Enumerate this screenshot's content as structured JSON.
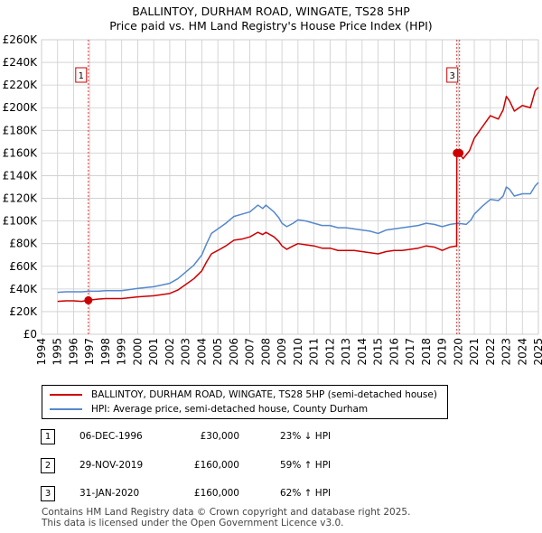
{
  "title_line1": "BALLINTOY, DURHAM ROAD, WINGATE, TS28 5HP",
  "title_line2": "Price paid vs. HM Land Registry's House Price Index (HPI)",
  "chart_data": {
    "type": "line",
    "xlim": [
      1994,
      2025
    ],
    "ylim": [
      0,
      260000
    ],
    "x_ticks": [
      1994,
      1995,
      1996,
      1997,
      1998,
      1999,
      2000,
      2001,
      2002,
      2003,
      2004,
      2005,
      2006,
      2007,
      2008,
      2009,
      2010,
      2011,
      2012,
      2013,
      2014,
      2015,
      2016,
      2017,
      2018,
      2019,
      2020,
      2021,
      2022,
      2023,
      2024,
      2025
    ],
    "y_ticks": [
      {
        "value": 0,
        "label": "£0"
      },
      {
        "value": 20000,
        "label": "£20K"
      },
      {
        "value": 40000,
        "label": "£40K"
      },
      {
        "value": 60000,
        "label": "£60K"
      },
      {
        "value": 80000,
        "label": "£80K"
      },
      {
        "value": 100000,
        "label": "£100K"
      },
      {
        "value": 120000,
        "label": "£120K"
      },
      {
        "value": 140000,
        "label": "£140K"
      },
      {
        "value": 160000,
        "label": "£160K"
      },
      {
        "value": 180000,
        "label": "£180K"
      },
      {
        "value": 200000,
        "label": "£200K"
      },
      {
        "value": 220000,
        "label": "£220K"
      },
      {
        "value": 240000,
        "label": "£240K"
      },
      {
        "value": 260000,
        "label": "£260K"
      }
    ],
    "grid": true,
    "series": [
      {
        "name": "BALLINTOY, DURHAM ROAD, WINGATE, TS28 5HP (semi-detached house)",
        "color": "#cc0000",
        "points": [
          [
            1995.0,
            29000
          ],
          [
            1995.5,
            29500
          ],
          [
            1996.0,
            29500
          ],
          [
            1996.5,
            29000
          ],
          [
            1996.92,
            30000
          ],
          [
            1997.5,
            31000
          ],
          [
            1998.0,
            31500
          ],
          [
            1999.0,
            31500
          ],
          [
            2000.0,
            33000
          ],
          [
            2001.0,
            34000
          ],
          [
            2002.0,
            36000
          ],
          [
            2002.5,
            39000
          ],
          [
            2003.0,
            44000
          ],
          [
            2003.5,
            49000
          ],
          [
            2004.0,
            56000
          ],
          [
            2004.3,
            64000
          ],
          [
            2004.6,
            71000
          ],
          [
            2005.0,
            74000
          ],
          [
            2005.5,
            78000
          ],
          [
            2006.0,
            83000
          ],
          [
            2006.5,
            84000
          ],
          [
            2007.0,
            86000
          ],
          [
            2007.5,
            90000
          ],
          [
            2007.8,
            88000
          ],
          [
            2008.0,
            90000
          ],
          [
            2008.5,
            86000
          ],
          [
            2008.8,
            82000
          ],
          [
            2009.0,
            78000
          ],
          [
            2009.3,
            75000
          ],
          [
            2009.7,
            78000
          ],
          [
            2010.0,
            80000
          ],
          [
            2010.5,
            79000
          ],
          [
            2011.0,
            78000
          ],
          [
            2011.5,
            76000
          ],
          [
            2012.0,
            76000
          ],
          [
            2012.5,
            74000
          ],
          [
            2013.0,
            74000
          ],
          [
            2013.5,
            74000
          ],
          [
            2014.0,
            73000
          ],
          [
            2014.5,
            72000
          ],
          [
            2015.0,
            71000
          ],
          [
            2015.5,
            73000
          ],
          [
            2016.0,
            74000
          ],
          [
            2016.5,
            74000
          ],
          [
            2017.0,
            75000
          ],
          [
            2017.5,
            76000
          ],
          [
            2018.0,
            78000
          ],
          [
            2018.5,
            77000
          ],
          [
            2019.0,
            74000
          ],
          [
            2019.5,
            77000
          ],
          [
            2019.9,
            78000
          ],
          [
            2019.91,
            160000
          ],
          [
            2020.08,
            160000
          ],
          [
            2020.3,
            155000
          ],
          [
            2020.7,
            162000
          ],
          [
            2021.0,
            173000
          ],
          [
            2021.5,
            183000
          ],
          [
            2022.0,
            193000
          ],
          [
            2022.5,
            190000
          ],
          [
            2022.8,
            198000
          ],
          [
            2023.0,
            210000
          ],
          [
            2023.2,
            206000
          ],
          [
            2023.5,
            197000
          ],
          [
            2024.0,
            202000
          ],
          [
            2024.5,
            200000
          ],
          [
            2024.8,
            215000
          ],
          [
            2025.0,
            218000
          ]
        ]
      },
      {
        "name": "HPI: Average price, semi-detached house, County Durham",
        "color": "#5588cc",
        "points": [
          [
            1995.0,
            37000
          ],
          [
            1995.5,
            37500
          ],
          [
            1996.0,
            37500
          ],
          [
            1996.5,
            37500
          ],
          [
            1997.0,
            38000
          ],
          [
            1997.5,
            38000
          ],
          [
            1998.0,
            38500
          ],
          [
            1999.0,
            38500
          ],
          [
            2000.0,
            40500
          ],
          [
            2001.0,
            42000
          ],
          [
            2002.0,
            45000
          ],
          [
            2002.5,
            49000
          ],
          [
            2003.0,
            55000
          ],
          [
            2003.5,
            61000
          ],
          [
            2004.0,
            70000
          ],
          [
            2004.3,
            80000
          ],
          [
            2004.6,
            89000
          ],
          [
            2005.0,
            93000
          ],
          [
            2005.5,
            98000
          ],
          [
            2006.0,
            104000
          ],
          [
            2006.5,
            106000
          ],
          [
            2007.0,
            108000
          ],
          [
            2007.5,
            114000
          ],
          [
            2007.8,
            111000
          ],
          [
            2008.0,
            114000
          ],
          [
            2008.5,
            108000
          ],
          [
            2008.8,
            103000
          ],
          [
            2009.0,
            98000
          ],
          [
            2009.3,
            95000
          ],
          [
            2009.7,
            98000
          ],
          [
            2010.0,
            101000
          ],
          [
            2010.5,
            100000
          ],
          [
            2011.0,
            98000
          ],
          [
            2011.5,
            96000
          ],
          [
            2012.0,
            96000
          ],
          [
            2012.5,
            94000
          ],
          [
            2013.0,
            94000
          ],
          [
            2013.5,
            93000
          ],
          [
            2014.0,
            92000
          ],
          [
            2014.5,
            91000
          ],
          [
            2015.0,
            89000
          ],
          [
            2015.5,
            92000
          ],
          [
            2016.0,
            93000
          ],
          [
            2016.5,
            94000
          ],
          [
            2017.0,
            95000
          ],
          [
            2017.5,
            96000
          ],
          [
            2018.0,
            98000
          ],
          [
            2018.5,
            97000
          ],
          [
            2019.0,
            95000
          ],
          [
            2019.5,
            97000
          ],
          [
            2020.0,
            98000
          ],
          [
            2020.5,
            97000
          ],
          [
            2020.8,
            101000
          ],
          [
            2021.0,
            106000
          ],
          [
            2021.5,
            113000
          ],
          [
            2022.0,
            119000
          ],
          [
            2022.5,
            118000
          ],
          [
            2022.8,
            122000
          ],
          [
            2023.0,
            130000
          ],
          [
            2023.2,
            128000
          ],
          [
            2023.5,
            122000
          ],
          [
            2024.0,
            124000
          ],
          [
            2024.5,
            124000
          ],
          [
            2024.8,
            131000
          ],
          [
            2025.0,
            134000
          ]
        ]
      }
    ],
    "markers": [
      {
        "label": "1",
        "x": 1996.92,
        "y": 30000
      },
      {
        "label": "2",
        "x": 2019.91,
        "y": 160000
      },
      {
        "label": "3",
        "x": 2020.08,
        "y": 160000
      }
    ],
    "annotation_boxes": [
      {
        "label": "1",
        "x": 1996.92
      },
      {
        "label": "3",
        "x": 2020.08
      }
    ]
  },
  "legend": {
    "series1": "BALLINTOY, DURHAM ROAD, WINGATE, TS28 5HP (semi-detached house)",
    "series2": "HPI: Average price, semi-detached house, County Durham"
  },
  "sales": [
    {
      "num": "1",
      "date": "06-DEC-1996",
      "price": "£30,000",
      "hpi": "23% ↓ HPI"
    },
    {
      "num": "2",
      "date": "29-NOV-2019",
      "price": "£160,000",
      "hpi": "59% ↑ HPI"
    },
    {
      "num": "3",
      "date": "31-JAN-2020",
      "price": "£160,000",
      "hpi": "62% ↑ HPI"
    }
  ],
  "footer": {
    "line1": "Contains HM Land Registry data © Crown copyright and database right 2025.",
    "line2": "This data is licensed under the Open Government Licence v3.0."
  }
}
